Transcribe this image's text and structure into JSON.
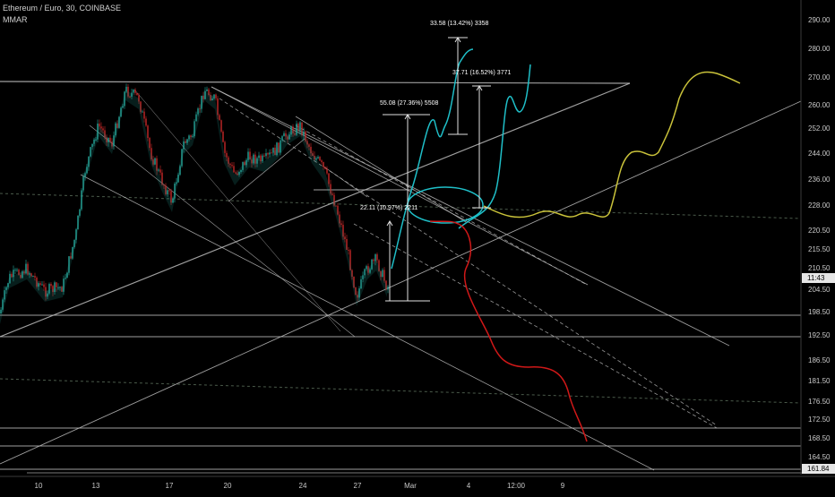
{
  "header": {
    "title": "Ethereum / Euro, 30, COINBASE",
    "indicator": "MMAR"
  },
  "colors": {
    "background": "#000000",
    "bull": "#26a69a",
    "bear": "#c62828",
    "line": "#bdbdbd",
    "projection_cyan": "#1fbfc8",
    "projection_yellow": "#c9c23a",
    "projection_red": "#d01818"
  },
  "chart_data": {
    "type": "candlestick",
    "symbol": "Ethereum / Euro",
    "interval": "30",
    "exchange": "COINBASE",
    "y_ticks": [
      290.0,
      280.0,
      270.0,
      260.0,
      252.0,
      244.0,
      236.0,
      228.0,
      220.5,
      215.5,
      210.5,
      204.5,
      198.5,
      192.5,
      186.5,
      181.5,
      176.5,
      172.5,
      168.5,
      164.5
    ],
    "x_tick_labels": [
      "10",
      "13",
      "17",
      "20",
      "24",
      "27",
      "Mar",
      "4",
      "12:00",
      "9"
    ],
    "last_price_label": "11:43",
    "current_price": 161.84,
    "measurements": [
      {
        "text": "22.11 (10.97%) 2211"
      },
      {
        "text": "55.08 (27.36%) 5508"
      },
      {
        "text": "33.58 (13.42%) 3358"
      },
      {
        "text": "37.71 (16.52%) 3771"
      }
    ],
    "grid": false
  }
}
